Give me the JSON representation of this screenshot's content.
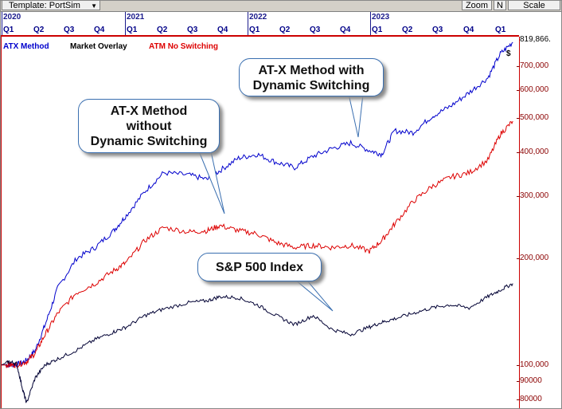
{
  "toolbar": {
    "template_label": "Template: PortSim",
    "zoom_label": "Zoom",
    "n_label": "N",
    "scale_label": "Scale"
  },
  "axis": {
    "years": [
      "2020",
      "2021",
      "2022",
      "2023"
    ],
    "quarters": [
      "Q1",
      "Q2",
      "Q3",
      "Q4",
      "Q1",
      "Q2",
      "Q3",
      "Q4",
      "Q1",
      "Q2",
      "Q3",
      "Q4",
      "Q1",
      "Q2",
      "Q3",
      "Q4",
      "Q1"
    ]
  },
  "legend": {
    "atx": "ATX Method",
    "market": "Market Overlay",
    "atm": "ATM No Switching"
  },
  "callouts": {
    "with_switching": [
      "AT-X Method with",
      "Dynamic Switching"
    ],
    "without_switching": [
      "AT-X Method",
      "without",
      "Dynamic Switching"
    ],
    "sp500": "S&P 500 Index"
  },
  "right_axis": {
    "last_value": "819,866.",
    "dollar": "$",
    "ticks": [
      "700,000",
      "600,000",
      "500,000",
      "400,000",
      "300,000",
      "200,000",
      "100,000",
      "90000",
      "80000"
    ]
  },
  "colors": {
    "atx": "#0000cc",
    "atm": "#dd0000",
    "market": "#000033",
    "axis": "#cc0000"
  },
  "chart_data": {
    "type": "line",
    "scale": "log",
    "ylim": [
      75000,
      850000
    ],
    "x_range": [
      "2020-01",
      "2024-02"
    ],
    "series": [
      {
        "name": "ATX Method",
        "points": [
          [
            0,
            100000
          ],
          [
            0.06,
            100000
          ],
          [
            0.12,
            100000
          ],
          [
            0.2,
            103000
          ],
          [
            0.27,
            110000
          ],
          [
            0.35,
            130000
          ],
          [
            0.45,
            165000
          ],
          [
            0.6,
            200000
          ],
          [
            0.75,
            215000
          ],
          [
            0.9,
            240000
          ],
          [
            1.0,
            265000
          ],
          [
            1.15,
            310000
          ],
          [
            1.3,
            350000
          ],
          [
            1.5,
            345000
          ],
          [
            1.65,
            335000
          ],
          [
            1.75,
            355000
          ],
          [
            1.9,
            385000
          ],
          [
            2.05,
            395000
          ],
          [
            2.2,
            375000
          ],
          [
            2.35,
            362000
          ],
          [
            2.5,
            390000
          ],
          [
            2.65,
            410000
          ],
          [
            2.8,
            425000
          ],
          [
            2.95,
            405000
          ],
          [
            3.05,
            395000
          ],
          [
            3.15,
            460000
          ],
          [
            3.3,
            455000
          ],
          [
            3.45,
            505000
          ],
          [
            3.6,
            540000
          ],
          [
            3.75,
            590000
          ],
          [
            3.9,
            650000
          ],
          [
            4.0,
            760000
          ],
          [
            4.1,
            819866
          ]
        ]
      },
      {
        "name": "ATM No Switching",
        "points": [
          [
            0,
            100000
          ],
          [
            0.06,
            100000
          ],
          [
            0.12,
            100000
          ],
          [
            0.2,
            102000
          ],
          [
            0.27,
            108000
          ],
          [
            0.35,
            122000
          ],
          [
            0.45,
            140000
          ],
          [
            0.6,
            160000
          ],
          [
            0.75,
            170000
          ],
          [
            0.9,
            185000
          ],
          [
            1.0,
            195000
          ],
          [
            1.15,
            225000
          ],
          [
            1.3,
            245000
          ],
          [
            1.5,
            238000
          ],
          [
            1.65,
            240000
          ],
          [
            1.75,
            248000
          ],
          [
            1.9,
            240000
          ],
          [
            2.05,
            235000
          ],
          [
            2.2,
            222000
          ],
          [
            2.35,
            215000
          ],
          [
            2.5,
            218000
          ],
          [
            2.65,
            215000
          ],
          [
            2.8,
            218000
          ],
          [
            2.95,
            210000
          ],
          [
            3.05,
            225000
          ],
          [
            3.15,
            250000
          ],
          [
            3.3,
            290000
          ],
          [
            3.45,
            320000
          ],
          [
            3.6,
            340000
          ],
          [
            3.75,
            350000
          ],
          [
            3.9,
            380000
          ],
          [
            4.0,
            450000
          ],
          [
            4.1,
            490000
          ]
        ]
      },
      {
        "name": "S&P 500 Index",
        "points": [
          [
            0,
            100000
          ],
          [
            0.06,
            102000
          ],
          [
            0.12,
            101000
          ],
          [
            0.17,
            85000
          ],
          [
            0.2,
            78000
          ],
          [
            0.27,
            92000
          ],
          [
            0.35,
            100000
          ],
          [
            0.45,
            104000
          ],
          [
            0.6,
            110000
          ],
          [
            0.75,
            118000
          ],
          [
            0.9,
            124000
          ],
          [
            1.0,
            128000
          ],
          [
            1.15,
            138000
          ],
          [
            1.3,
            144000
          ],
          [
            1.5,
            150000
          ],
          [
            1.65,
            152000
          ],
          [
            1.75,
            156000
          ],
          [
            1.9,
            155000
          ],
          [
            2.05,
            148000
          ],
          [
            2.2,
            138000
          ],
          [
            2.35,
            130000
          ],
          [
            2.5,
            138000
          ],
          [
            2.65,
            126000
          ],
          [
            2.8,
            122000
          ],
          [
            2.95,
            128000
          ],
          [
            3.05,
            132000
          ],
          [
            3.15,
            135000
          ],
          [
            3.3,
            140000
          ],
          [
            3.45,
            145000
          ],
          [
            3.6,
            148000
          ],
          [
            3.75,
            145000
          ],
          [
            3.9,
            156000
          ],
          [
            4.0,
            163000
          ],
          [
            4.1,
            170000
          ]
        ]
      }
    ]
  }
}
